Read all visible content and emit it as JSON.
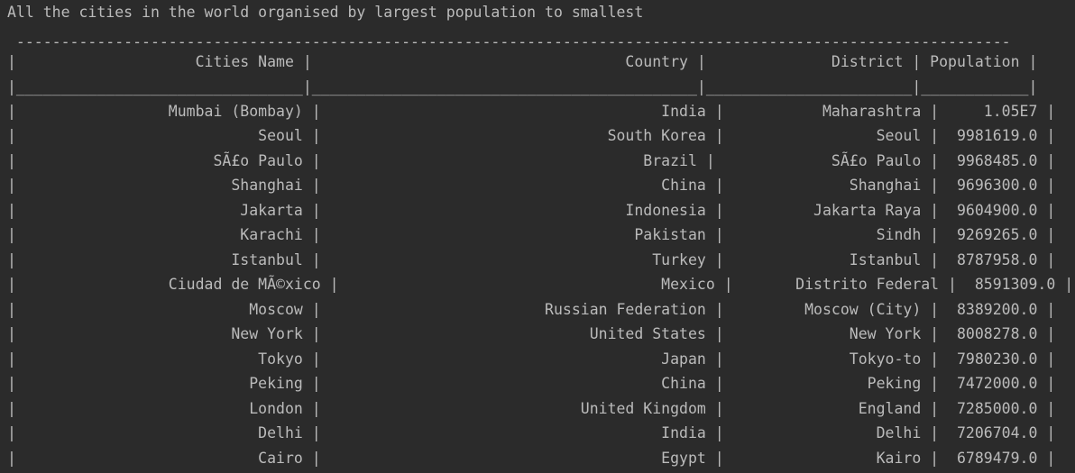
{
  "console": {
    "heading": "All the cities in the world organised by largest population to smallest",
    "top_border": " ---------------------------------------------------------------------------------------------------------------",
    "header_row": "|                    Cities Name |                                   Country |              District | Population |",
    "separator_row": "|________________________________|___________________________________________|_______________________|____________|",
    "rows": [
      "|                 Mumbai (Bombay) |                                      India |           Maharashtra |     1.05E7 |",
      "|                           Seoul |                                South Korea |                 Seoul |  9981619.0 |",
      "|                      SÃ£o Paulo |                                    Brazil |             SÃ£o Paulo |  9968485.0 |",
      "|                        Shanghai |                                      China |              Shanghai |  9696300.0 |",
      "|                         Jakarta |                                  Indonesia |          Jakarta Raya |  9604900.0 |",
      "|                         Karachi |                                   Pakistan |                 Sindh |  9269265.0 |",
      "|                        Istanbul |                                     Turkey |              Istanbul |  8787958.0 |",
      "|                 Ciudad de MÃ©xico |                                    Mexico |       Distrito Federal |  8591309.0 |",
      "|                          Moscow |                         Russian Federation |         Moscow (City) |  8389200.0 |",
      "|                        New York |                              United States |              New York |  8008278.0 |",
      "|                           Tokyo |                                      Japan |              Tokyo-to |  7980230.0 |",
      "|                          Peking |                                      China |                Peking |  7472000.0 |",
      "|                          London |                             United Kingdom |               England |  7285000.0 |",
      "|                           Delhi |                                      India |                 Delhi |  7206704.0 |",
      "|                           Cairo |                                      Egypt |                 Kairo |  6789479.0 |"
    ]
  }
}
